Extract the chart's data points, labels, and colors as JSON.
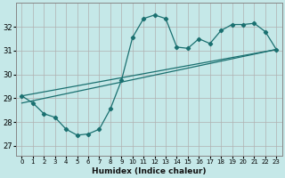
{
  "xlabel": "Humidex (Indice chaleur)",
  "bg_color": "#c5e8e8",
  "grid_color": "#b0b0b0",
  "line_color": "#1a7070",
  "ylim": [
    26.6,
    33.0
  ],
  "xlim": [
    -0.5,
    23.5
  ],
  "yticks": [
    27,
    28,
    29,
    30,
    31,
    32
  ],
  "xticks": [
    0,
    1,
    2,
    3,
    4,
    5,
    6,
    7,
    8,
    9,
    10,
    11,
    12,
    13,
    14,
    15,
    16,
    17,
    18,
    19,
    20,
    21,
    22,
    23
  ],
  "wavy_x": [
    0,
    1,
    2,
    3,
    4,
    5,
    6,
    7,
    8,
    9,
    10,
    11,
    12,
    13,
    14,
    15,
    16,
    17,
    18,
    19,
    20,
    21,
    22,
    23
  ],
  "wavy_y": [
    29.1,
    28.8,
    28.35,
    28.2,
    27.7,
    27.45,
    27.5,
    27.7,
    28.55,
    29.75,
    31.55,
    32.35,
    32.5,
    32.35,
    31.15,
    31.1,
    31.5,
    31.3,
    31.85,
    32.1,
    32.1,
    32.15,
    31.8,
    31.05
  ],
  "trend1_x": [
    0,
    23
  ],
  "trend1_y": [
    29.1,
    31.05
  ],
  "trend2_x": [
    0,
    23
  ],
  "trend2_y": [
    28.8,
    31.05
  ]
}
